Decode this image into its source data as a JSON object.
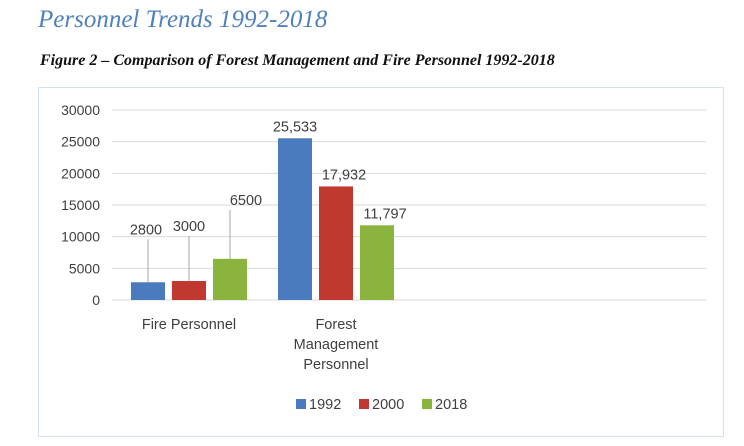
{
  "page": {
    "section_title": "Personnel Trends 1992-2018",
    "figure_caption": "Figure 2 – Comparison of Forest Management and Fire Personnel 1992-2018"
  },
  "chart_data": {
    "type": "bar",
    "title": "",
    "xlabel": "",
    "ylabel": "",
    "categories": [
      [
        "Fire Personnel"
      ],
      [
        "Forest",
        "Management",
        "Personnel"
      ]
    ],
    "series": [
      {
        "name": "1992",
        "values": [
          2800,
          25533
        ],
        "labels": [
          "2800",
          "25,533"
        ],
        "color": "#4a7bbf"
      },
      {
        "name": "2000",
        "values": [
          3000,
          17932
        ],
        "labels": [
          "3000",
          "17,932"
        ],
        "color": "#c0392f"
      },
      {
        "name": "2018",
        "values": [
          6500,
          11797
        ],
        "labels": [
          "6500",
          "11,797"
        ],
        "color": "#8ab43e"
      }
    ],
    "ylim": [
      0,
      30000
    ],
    "yticks": [
      "0",
      "5000",
      "10000",
      "15000",
      "20000",
      "25000",
      "30000"
    ],
    "grid": true,
    "legend": "bottom"
  }
}
